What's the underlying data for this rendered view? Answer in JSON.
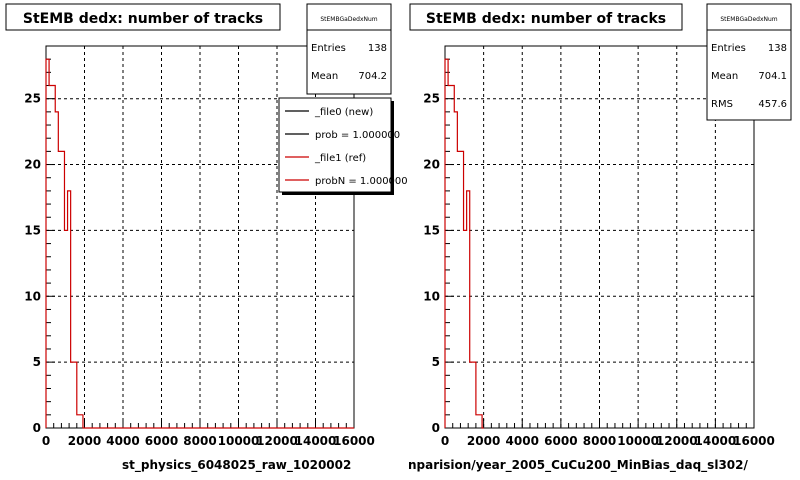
{
  "colors": {
    "new": "#000000",
    "ref": "#cc0000"
  },
  "footer": {
    "left": "st_physics_6048025_raw_1020002",
    "right": "nparision/year_2005_CuCu200_MinBias_daq_sl302/"
  },
  "chart_data": [
    {
      "type": "histogram",
      "title": "StEMB dedx: number of tracks",
      "xlim": [
        0,
        16000
      ],
      "ylim": [
        0,
        29
      ],
      "xticks": [
        0,
        2000,
        4000,
        6000,
        8000,
        10000,
        12000,
        14000,
        16000
      ],
      "yticks": [
        0,
        5,
        10,
        15,
        20,
        25
      ],
      "grid": true,
      "stats": {
        "name": "StEMBGaDedxNum",
        "entries": "138",
        "mean": "704.2",
        "rms": ""
      },
      "legend": {
        "placement": "top-right",
        "entries": [
          {
            "label": "_file0 (new)",
            "color": "#000000"
          },
          {
            "label": "prob = 1.000000",
            "color": "#000000"
          },
          {
            "label": "_file1 (ref)",
            "color": "#cc0000"
          },
          {
            "label": "probN = 1.000000",
            "color": "#cc0000"
          }
        ]
      },
      "series": [
        {
          "bin_edges": [
            0,
            160,
            320,
            480,
            640,
            800,
            960,
            1120,
            1280,
            1440,
            1600,
            1760,
            1920,
            2080,
            16000
          ],
          "values": [
            28,
            26,
            26,
            24,
            21,
            21,
            15,
            18,
            5,
            5,
            1,
            1,
            0,
            0
          ],
          "color": "#cc0000"
        }
      ]
    },
    {
      "type": "histogram",
      "title": "StEMB dedx: number of tracks",
      "xlim": [
        0,
        16000
      ],
      "ylim": [
        0,
        29
      ],
      "xticks": [
        0,
        2000,
        4000,
        6000,
        8000,
        10000,
        12000,
        14000,
        16000
      ],
      "yticks": [
        0,
        5,
        10,
        15,
        20,
        25
      ],
      "grid": true,
      "stats": {
        "name": "StEMBGaDedxNum",
        "entries": "138",
        "mean": "704.1",
        "rms": "457.6"
      },
      "series": [
        {
          "bin_edges": [
            0,
            160,
            320,
            480,
            640,
            800,
            960,
            1120,
            1280,
            1440,
            1600,
            1760,
            1920,
            2000
          ],
          "values": [
            28,
            26,
            26,
            24,
            21,
            21,
            15,
            18,
            5,
            5,
            1,
            1,
            0
          ],
          "color": "#cc0000"
        }
      ]
    }
  ]
}
